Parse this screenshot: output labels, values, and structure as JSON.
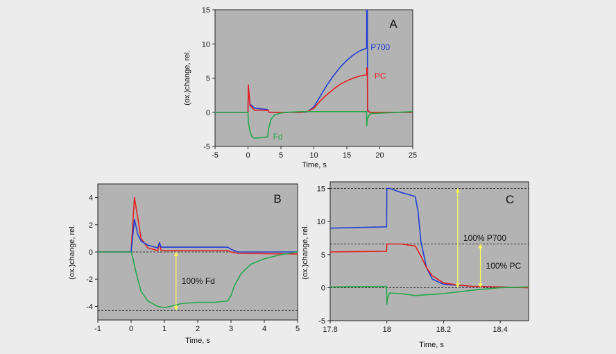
{
  "colors": {
    "page_bg": "#ececec",
    "plot_bg": "#b3b3b3",
    "P700": "#1f3fd0",
    "PC": "#e41e1e",
    "Fd": "#25a84a",
    "arrow": "#ffff55",
    "axis": "#222222"
  },
  "chart_data": [
    {
      "panel": "A",
      "type": "line",
      "xlabel": "Time, s",
      "ylabel": "(ox.)change, rel.",
      "xlim": [
        -5,
        25
      ],
      "ylim": [
        -5,
        15
      ],
      "xticks": [
        -5,
        0,
        5,
        10,
        15,
        20,
        25
      ],
      "yticks": [
        -5,
        0,
        5,
        10,
        15
      ],
      "annotations": [
        {
          "text": "P700",
          "x": 18.6,
          "y": 9.5,
          "color": "#1f3fd0"
        },
        {
          "text": "PC",
          "x": 19.2,
          "y": 5.3,
          "color": "#e41e1e"
        },
        {
          "text": "Fd",
          "x": 3.8,
          "y": -3.6,
          "color": "#25a84a"
        }
      ],
      "series": [
        {
          "name": "P700",
          "color": "#1f3fd0",
          "x": [
            -5,
            0,
            0.05,
            0.3,
            1,
            2,
            3,
            3.2,
            8,
            9,
            10,
            11,
            12,
            13,
            14,
            15,
            16,
            17,
            18,
            18.02,
            18.1,
            18.15,
            18.5,
            25
          ],
          "y": [
            0,
            0,
            3.5,
            1.2,
            0.6,
            0.5,
            0.4,
            0,
            0,
            0.05,
            0.8,
            2.4,
            4.0,
            5.4,
            6.6,
            7.6,
            8.4,
            9.0,
            9.4,
            15.0,
            14.8,
            0.3,
            0,
            0
          ]
        },
        {
          "name": "PC",
          "color": "#e41e1e",
          "x": [
            -5,
            0,
            0.05,
            0.3,
            1,
            2,
            3,
            3.2,
            8,
            9,
            10,
            11,
            12,
            13,
            14,
            15,
            16,
            17,
            18,
            18.02,
            18.1,
            18.15,
            18.5,
            25
          ],
          "y": [
            0,
            0,
            4.0,
            1.0,
            0.3,
            0.3,
            0.3,
            0,
            0,
            0.1,
            0.6,
            1.7,
            2.6,
            3.4,
            4.1,
            4.6,
            5.0,
            5.3,
            5.5,
            6.5,
            6.4,
            0.2,
            0,
            0
          ]
        },
        {
          "name": "Fd",
          "color": "#25a84a",
          "x": [
            -5,
            0,
            0.05,
            0.3,
            0.6,
            1,
            2,
            3,
            3.1,
            3.5,
            4,
            5,
            6,
            8,
            18,
            18.02,
            18.1,
            18.5,
            25
          ],
          "y": [
            0,
            0,
            -1.5,
            -2.8,
            -3.6,
            -3.8,
            -3.7,
            -3.6,
            -2.5,
            -1.0,
            -0.4,
            -0.1,
            0,
            0.1,
            0.1,
            -2.0,
            -1.0,
            -0.2,
            0.1
          ]
        }
      ]
    },
    {
      "panel": "B",
      "type": "line",
      "xlabel": "Time, s",
      "ylabel": "(ox.)change, rel.",
      "xlim": [
        -1,
        5
      ],
      "ylim": [
        -5,
        5
      ],
      "xticks": [
        -1,
        0,
        1,
        2,
        3,
        4,
        5
      ],
      "yticks": [
        -4,
        -2,
        0,
        2,
        4
      ],
      "reference_lines": [
        {
          "y": 0
        },
        {
          "y": -4.3
        }
      ],
      "arrow": {
        "x": 1.35,
        "y_from": -4.3,
        "y_to": 0,
        "label": "100% Fd"
      },
      "series": [
        {
          "name": "PC",
          "color": "#e41e1e",
          "x": [
            -1,
            0,
            0.05,
            0.1,
            0.2,
            0.3,
            0.5,
            0.8,
            0.85,
            0.9,
            1.2,
            2,
            2.9,
            3.0,
            3.2,
            5
          ],
          "y": [
            0,
            0,
            2.0,
            4.0,
            2.5,
            1.0,
            0.3,
            0.1,
            0.7,
            0.1,
            0.1,
            0.1,
            0.1,
            0,
            -0.1,
            -0.15
          ]
        },
        {
          "name": "P700",
          "color": "#1f3fd0",
          "x": [
            -1,
            0,
            0.05,
            0.1,
            0.2,
            0.3,
            0.5,
            0.8,
            0.85,
            0.9,
            1.2,
            2,
            2.9,
            3.0,
            3.2,
            5
          ],
          "y": [
            0,
            0,
            1.2,
            2.4,
            1.3,
            0.8,
            0.5,
            0.3,
            0.7,
            0.35,
            0.35,
            0.35,
            0.35,
            0.2,
            0,
            0
          ]
        },
        {
          "name": "Fd",
          "color": "#25a84a",
          "x": [
            -1,
            0,
            0.05,
            0.1,
            0.2,
            0.3,
            0.5,
            0.8,
            1.0,
            1.5,
            2,
            2.5,
            2.9,
            3.0,
            3.1,
            3.3,
            3.6,
            4,
            4.5,
            5
          ],
          "y": [
            0,
            0,
            -0.4,
            -1.0,
            -2.0,
            -2.9,
            -3.6,
            -4.0,
            -4.1,
            -3.8,
            -3.7,
            -3.7,
            -3.6,
            -3.2,
            -2.5,
            -1.6,
            -0.9,
            -0.5,
            -0.2,
            0
          ]
        }
      ]
    },
    {
      "panel": "C",
      "type": "line",
      "xlabel": "Time, s",
      "ylabel": "(ox.)change, rel.",
      "xlim": [
        17.8,
        18.5
      ],
      "ylim": [
        -5,
        16
      ],
      "xticks": [
        17.8,
        18.0,
        18.2,
        18.4
      ],
      "yticks": [
        -5,
        0,
        5,
        10,
        15
      ],
      "reference_lines": [
        {
          "y": 0
        },
        {
          "y": 6.6
        },
        {
          "y": 15.0
        }
      ],
      "arrows": [
        {
          "x": 18.25,
          "y_from": 0,
          "y_to": 15.0,
          "label": "100% P700"
        },
        {
          "x": 18.33,
          "y_from": 0,
          "y_to": 6.6,
          "label": "100% PC"
        }
      ],
      "series": [
        {
          "name": "P700",
          "color": "#1f3fd0",
          "x": [
            17.8,
            17.999,
            18.0,
            18.01,
            18.05,
            18.1,
            18.11,
            18.12,
            18.14,
            18.16,
            18.2,
            18.3,
            18.5
          ],
          "y": [
            9.0,
            9.2,
            15.0,
            15.0,
            14.4,
            13.8,
            11.5,
            7.0,
            3.0,
            1.3,
            0.5,
            0.2,
            0
          ]
        },
        {
          "name": "PC",
          "color": "#e41e1e",
          "x": [
            17.8,
            17.999,
            18.0,
            18.05,
            18.1,
            18.12,
            18.14,
            18.16,
            18.2,
            18.25,
            18.3,
            18.5
          ],
          "y": [
            5.4,
            5.5,
            6.6,
            6.6,
            6.3,
            4.8,
            3.0,
            1.8,
            0.7,
            0.4,
            0.2,
            0
          ]
        },
        {
          "name": "Fd",
          "color": "#25a84a",
          "x": [
            17.8,
            17.999,
            18.0,
            18.003,
            18.01,
            18.05,
            18.1,
            18.2,
            18.3,
            18.4,
            18.5
          ],
          "y": [
            0.1,
            0.2,
            -2.5,
            -1.5,
            -0.8,
            -0.9,
            -1.2,
            -0.9,
            -0.4,
            0,
            0.1
          ]
        }
      ]
    }
  ]
}
